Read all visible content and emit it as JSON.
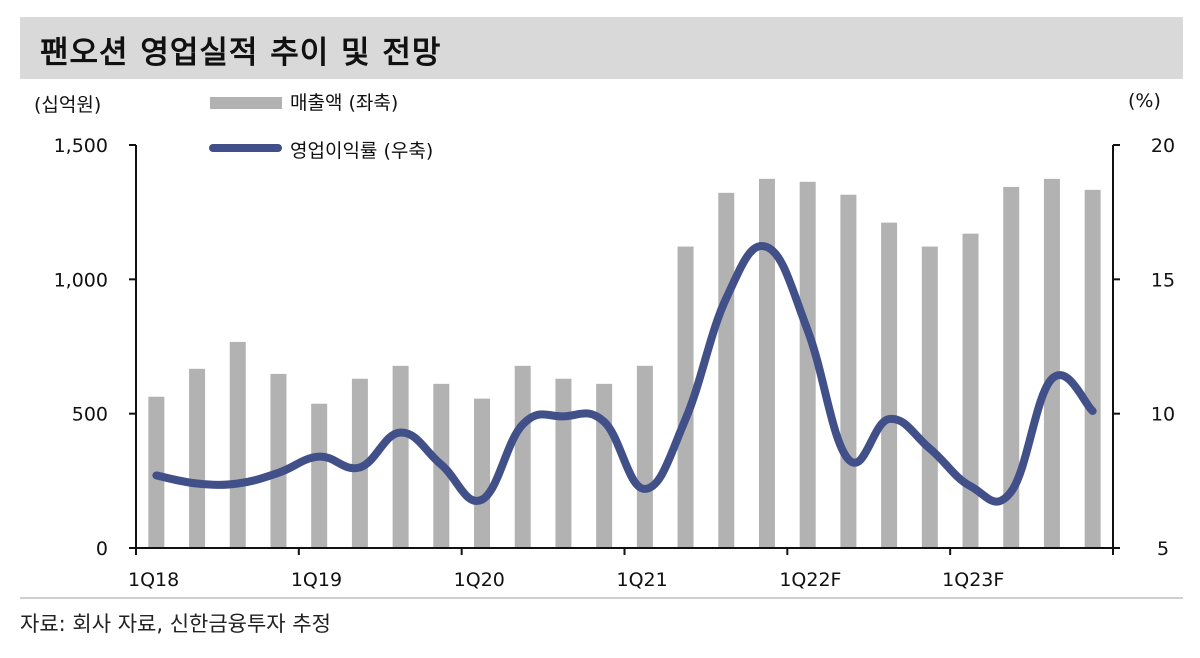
{
  "title": "팬오션 영업실적 추이 및 전망",
  "left_unit": "(십억원)",
  "right_unit": "(%)",
  "legend": {
    "bar_label": "매출액 (좌축)",
    "line_label": "영업이익률 (우축)"
  },
  "left_axis": {
    "ticks": [
      "0",
      "500",
      "1,000",
      "1,500"
    ]
  },
  "right_axis": {
    "ticks": [
      "5",
      "10",
      "15",
      "20"
    ]
  },
  "x_axis": {
    "labels": [
      "1Q18",
      "1Q19",
      "1Q20",
      "1Q21",
      "1Q22F",
      "1Q23F"
    ]
  },
  "source": "자료: 회사 자료, 신한금융투자 추정",
  "colors": {
    "bar": "#b2b2b2",
    "line": "#425089",
    "title_bg": "#d9d9d9"
  },
  "chart_data": {
    "type": "bar+line",
    "title": "팬오션 영업실적 추이 및 전망",
    "categories": [
      "1Q18",
      "2Q18",
      "3Q18",
      "4Q18",
      "1Q19",
      "2Q19",
      "3Q19",
      "4Q19",
      "1Q20",
      "2Q20",
      "3Q20",
      "4Q20",
      "1Q21",
      "2Q21",
      "3Q21",
      "4Q21",
      "1Q22F",
      "2Q22F",
      "3Q22F",
      "4Q22F",
      "1Q23F",
      "2Q23F",
      "3Q23F",
      "4Q23F"
    ],
    "series": [
      {
        "name": "매출액 (좌축)",
        "type": "bar",
        "axis": "left",
        "values": [
          563,
          667,
          767,
          648,
          537,
          630,
          678,
          611,
          556,
          678,
          630,
          611,
          678,
          1122,
          1322,
          1374,
          1363,
          1315,
          1211,
          1122,
          1170,
          1344,
          1374,
          1333
        ]
      },
      {
        "name": "영업이익률 (우축)",
        "type": "line",
        "axis": "right",
        "values": [
          7.7,
          7.4,
          7.4,
          7.8,
          8.4,
          8.0,
          9.3,
          8.1,
          6.8,
          9.6,
          9.9,
          9.7,
          7.2,
          9.8,
          14.3,
          16.2,
          13.1,
          8.3,
          9.8,
          8.7,
          7.3,
          7.1,
          11.3,
          10.1
        ]
      }
    ],
    "xlabel": "",
    "ylabel": "(십억원)",
    "ylabel_right": "(%)",
    "ylim": [
      0,
      1500
    ],
    "ylim_right": [
      5,
      20
    ],
    "xtick_labels": [
      "1Q18",
      "1Q19",
      "1Q20",
      "1Q21",
      "1Q22F",
      "1Q23F"
    ],
    "grid": false,
    "legend_position": "top-left"
  }
}
